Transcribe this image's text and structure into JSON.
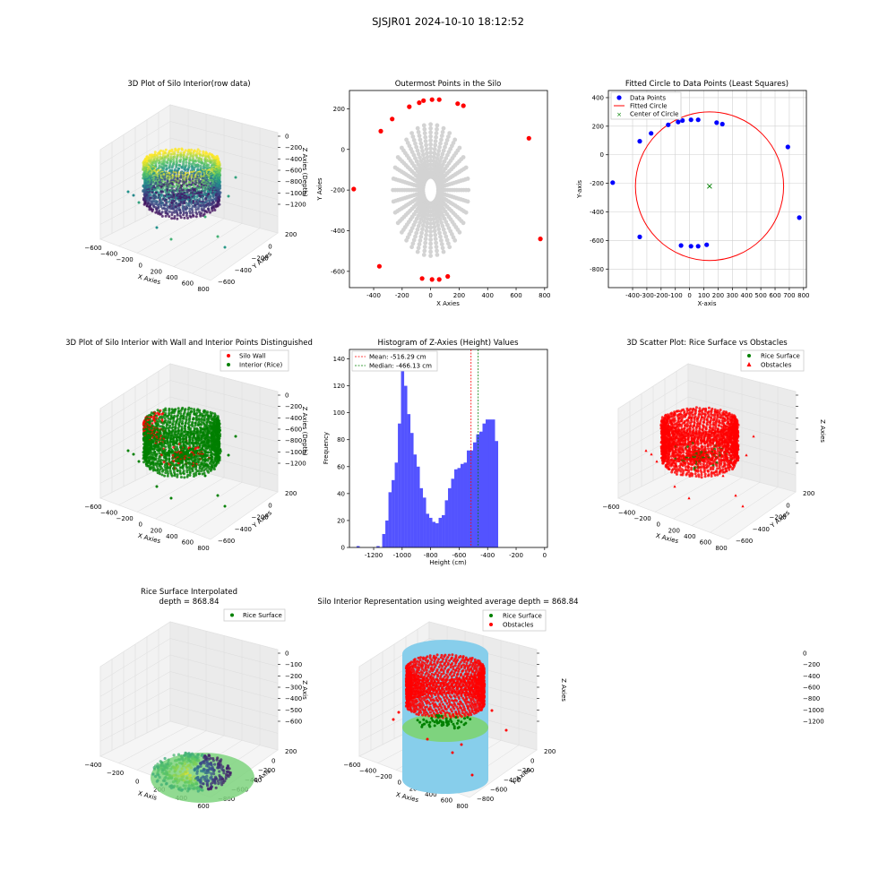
{
  "figure_title": "SJSJR01 2024-10-10 18:12:52",
  "colors": {
    "wall": "#ff0000",
    "rice": "#008000",
    "points_blue": "#0000ff",
    "gray": "#d3d3d3",
    "hist_bar": "#4a4aff",
    "sky": "#87ceeb",
    "light_green": "#7ed37e"
  },
  "chart_data": [
    {
      "id": "p1",
      "type": "scatter3d",
      "title": "3D Plot of Silo Interior(row data)",
      "xlabel": "X Axies",
      "ylabel": "Y Axies",
      "zlabel": "Z Axies (Depth)",
      "x_ticks": [
        "−600",
        "−400",
        "−200",
        "0",
        "200",
        "400",
        "600",
        "800"
      ],
      "y_ticks": [
        "200",
        "0",
        "−200",
        "−400",
        "−600"
      ],
      "z_ticks": [
        "0",
        "−200",
        "−400",
        "−600",
        "−800",
        "−1000",
        "−1200"
      ],
      "colormap": "viridis"
    },
    {
      "id": "p2",
      "type": "scatter",
      "title": "Outermost Points in the Silo",
      "xlabel": "X Axies",
      "ylabel": "Y Axies",
      "xlim": [
        -570,
        820
      ],
      "ylim": [
        -680,
        290
      ],
      "x_ticks": [
        -400,
        -200,
        0,
        200,
        400,
        600,
        800
      ],
      "y_ticks": [
        200,
        0,
        -200,
        -400,
        -600
      ],
      "outer_points": {
        "x": [
          -540,
          -350,
          -360,
          -270,
          -150,
          -80,
          -50,
          10,
          60,
          190,
          230,
          690,
          770,
          -60,
          10,
          60,
          120
        ],
        "y": [
          -195,
          90,
          -575,
          150,
          210,
          230,
          240,
          245,
          245,
          225,
          215,
          55,
          -440,
          -635,
          -640,
          -640,
          -625
        ]
      },
      "inner_cloud_color": "gray"
    },
    {
      "id": "p3",
      "type": "scatter",
      "title": "Fitted Circle to Data Points (Least Squares)",
      "xlabel": "X-axis",
      "ylabel": "Y-axis",
      "xlim": [
        -570,
        820
      ],
      "ylim": [
        -930,
        450
      ],
      "x_ticks": [
        -400,
        -300,
        -200,
        -100,
        0,
        100,
        200,
        300,
        400,
        500,
        600,
        700,
        800
      ],
      "y_ticks": [
        400,
        200,
        0,
        -200,
        -400,
        -600,
        -800
      ],
      "legend": [
        "Data Points",
        "Fitted Circle",
        "Center of Circle"
      ],
      "points": {
        "x": [
          -540,
          -350,
          -350,
          -270,
          -150,
          -80,
          -50,
          10,
          60,
          190,
          230,
          690,
          770,
          -60,
          10,
          60,
          120
        ],
        "y": [
          -195,
          95,
          -575,
          150,
          210,
          230,
          240,
          245,
          245,
          225,
          215,
          55,
          -440,
          -635,
          -640,
          -640,
          -630
        ]
      },
      "circle": {
        "cx": 140,
        "cy": -220,
        "r": 520
      },
      "center": {
        "x": 140,
        "y": -220
      }
    },
    {
      "id": "p4",
      "type": "scatter3d",
      "title": "3D Plot of Silo Interior with Wall and Interior Points Distinguished",
      "xlabel": "X Axies",
      "ylabel": "Y Axies",
      "zlabel": "Z Axies (Depth)",
      "x_ticks": [
        "−600",
        "−400",
        "−200",
        "0",
        "200",
        "400",
        "600",
        "800"
      ],
      "y_ticks": [
        "200",
        "0",
        "−200",
        "−400",
        "−600"
      ],
      "z_ticks": [
        "0",
        "−200",
        "−400",
        "−600",
        "−800",
        "−1000",
        "−1200"
      ],
      "legend": [
        "Silo Wall",
        "Interior (Rice)"
      ]
    },
    {
      "id": "p5",
      "type": "bar",
      "title": "Histogram of Z-Axies (Height) Values",
      "xlabel": "Height (cm)",
      "ylabel": "Frequency",
      "xlim": [
        -1370,
        20
      ],
      "ylim": [
        0,
        147
      ],
      "x_ticks": [
        -1200,
        -1000,
        -800,
        -600,
        -400,
        -200,
        0
      ],
      "y_ticks": [
        0,
        20,
        40,
        60,
        80,
        100,
        120,
        140
      ],
      "bin_start": -1140,
      "bin_width": 22,
      "values": [
        10,
        20,
        41,
        50,
        63,
        92,
        140,
        120,
        99,
        85,
        69,
        60,
        44,
        37,
        25,
        22,
        19,
        18,
        22,
        24,
        35,
        44,
        51,
        58,
        59,
        62,
        63,
        72,
        72,
        78,
        84,
        86,
        92,
        95,
        95,
        95,
        79
      ],
      "tiny_bins": [
        {
          "x": -1320,
          "v": 1
        },
        {
          "x": -1180,
          "v": 1
        }
      ],
      "mean": -516.29,
      "median": -466.13,
      "legend": [
        "Mean: -516.29 cm",
        "Median: -466.13 cm"
      ]
    },
    {
      "id": "p6",
      "type": "scatter3d",
      "title": "3D Scatter Plot: Rice Surface vs Obstacles",
      "xlabel": "X Axies",
      "ylabel": "Y Axies",
      "zlabel": "Z Axies",
      "x_ticks": [
        "−600",
        "−400",
        "−200",
        "0",
        "200",
        "400",
        "600",
        "800"
      ],
      "y_ticks": [
        "200",
        "0",
        "−200",
        "−400",
        "−600"
      ],
      "z_ticks": [
        "0",
        "−200",
        "−400",
        "−600",
        "−800",
        "−1000",
        "−1200"
      ],
      "legend": [
        "Rice Surface",
        "Obstacles"
      ]
    },
    {
      "id": "p7",
      "type": "surface3d",
      "title": "Rice Surface Interpolated",
      "subtitle": "depth = 868.84",
      "xlabel": "X Axis",
      "ylabel": "Y Axis",
      "zlabel": "Z Axis",
      "x_ticks": [
        "−400",
        "−200",
        "0",
        "200",
        "400",
        "600"
      ],
      "y_ticks": [
        "200",
        "0",
        "−200",
        "−400",
        "−600",
        "−800"
      ],
      "z_ticks": [
        "0",
        "−100",
        "−200",
        "−300",
        "−400",
        "−500",
        "−600"
      ],
      "legend": [
        "Rice Surface"
      ]
    },
    {
      "id": "p8",
      "type": "scatter3d",
      "title": "Silo Interior Representation using weighted average depth = 868.84",
      "xlabel": "X Axies",
      "ylabel": "Y Axies",
      "zlabel": "Z Axies",
      "x_ticks": [
        "−600",
        "−400",
        "−200",
        "0",
        "200",
        "400",
        "600",
        "800"
      ],
      "y_ticks": [
        "200",
        "0",
        "−200",
        "−400",
        "−600",
        "−800"
      ],
      "z_ticks": [
        "0",
        "−200",
        "−400",
        "−600",
        "−800",
        "−1000",
        "−1200"
      ],
      "legend": [
        "Rice Surface",
        "Obstacles"
      ]
    }
  ]
}
